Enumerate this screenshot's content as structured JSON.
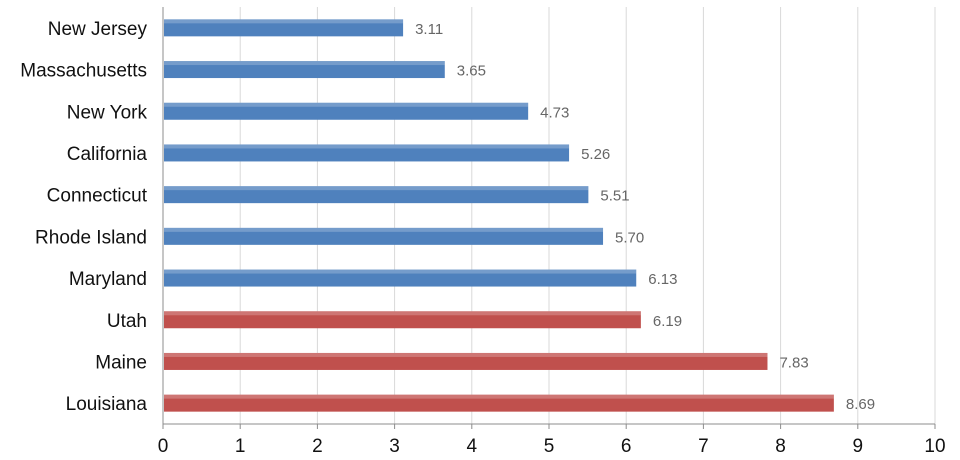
{
  "chart_data": {
    "type": "bar",
    "orientation": "horizontal",
    "title": "",
    "xlabel": "",
    "ylabel": "",
    "xlim": [
      0,
      10
    ],
    "x_ticks": [
      "0",
      "1",
      "2",
      "3",
      "4",
      "5",
      "6",
      "7",
      "8",
      "9",
      "10"
    ],
    "grid": "vertical",
    "legend": "none",
    "categories": [
      "New Jersey",
      "Massachusetts",
      "New York",
      "California",
      "Connecticut",
      "Rhode Island",
      "Maryland",
      "Utah",
      "Maine",
      "Louisiana"
    ],
    "values": [
      3.11,
      3.65,
      4.73,
      5.26,
      5.51,
      5.7,
      6.13,
      6.19,
      7.83,
      8.69
    ],
    "value_labels": [
      "3.11",
      "3.65",
      "4.73",
      "5.26",
      "5.51",
      "5.70",
      "6.13",
      "6.19",
      "7.83",
      "8.69"
    ],
    "bar_colors": [
      "#4f81bd",
      "#4f81bd",
      "#4f81bd",
      "#4f81bd",
      "#4f81bd",
      "#4f81bd",
      "#4f81bd",
      "#c0504d",
      "#c0504d",
      "#c0504d"
    ]
  }
}
